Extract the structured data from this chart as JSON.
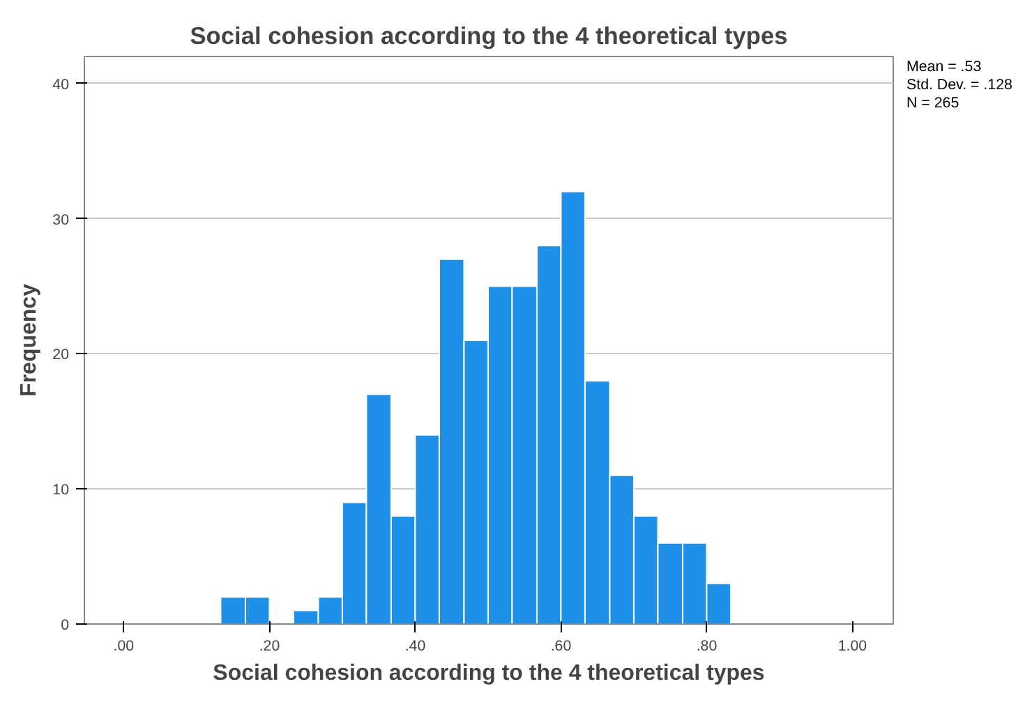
{
  "chart_data": {
    "type": "histogram",
    "title": "Social cohesion according to the 4 theoretical types",
    "xlabel": "Social cohesion according to the 4 theoretical types",
    "ylabel": "Frequency",
    "bins": [
      0.133,
      0.167,
      0.2,
      0.233,
      0.267,
      0.3,
      0.333,
      0.367,
      0.4,
      0.433,
      0.467,
      0.5,
      0.533,
      0.567,
      0.6,
      0.633,
      0.667,
      0.7,
      0.733,
      0.767,
      0.8,
      0.833
    ],
    "values": [
      2,
      2,
      0,
      1,
      2,
      9,
      17,
      8,
      14,
      27,
      21,
      25,
      25,
      28,
      32,
      18,
      11,
      8,
      6,
      6,
      3
    ],
    "color": "#1e90e8",
    "xlim": [
      -0.054,
      1.056
    ],
    "ylim": [
      0,
      42
    ],
    "xticks": [
      {
        "value": 0,
        "label": ".00"
      },
      {
        "value": 0.2,
        "label": ".20"
      },
      {
        "value": 0.4,
        "label": ".40"
      },
      {
        "value": 0.6,
        "label": ".60"
      },
      {
        "value": 0.8,
        "label": ".80"
      },
      {
        "value": 1,
        "label": "1.00"
      }
    ],
    "yticks": [
      0,
      10,
      20,
      30,
      40
    ],
    "grid": "y",
    "annotations": [
      "Mean = .53",
      "Std. Dev. = .128",
      "N = 265"
    ]
  }
}
